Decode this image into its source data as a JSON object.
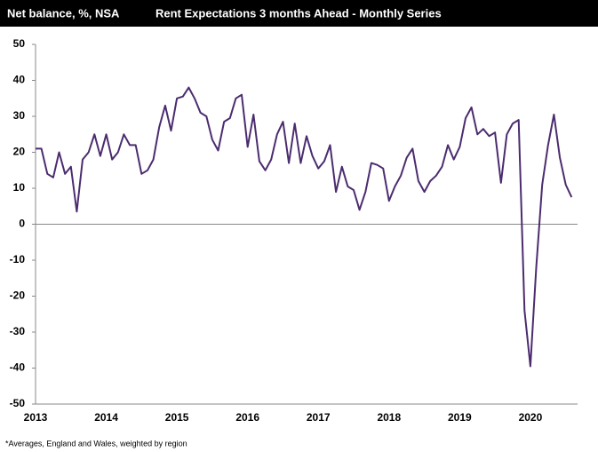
{
  "chart_data": {
    "type": "line",
    "title": "Rent Expectations 3 months Ahead -  Monthly Series",
    "y_label": "Net balance, %, NSA",
    "footnote": "*Averages,  England and Wales, weighted by region",
    "categories": [
      "2013",
      null,
      null,
      null,
      null,
      null,
      null,
      null,
      null,
      null,
      null,
      null,
      "2014",
      null,
      null,
      null,
      null,
      null,
      null,
      null,
      null,
      null,
      null,
      null,
      "2015",
      null,
      null,
      null,
      null,
      null,
      null,
      null,
      null,
      null,
      null,
      null,
      "2016",
      null,
      null,
      null,
      null,
      null,
      null,
      null,
      null,
      null,
      null,
      null,
      "2017",
      null,
      null,
      null,
      null,
      null,
      null,
      null,
      null,
      null,
      null,
      null,
      "2018",
      null,
      null,
      null,
      null,
      null,
      null,
      null,
      null,
      null,
      null,
      null,
      "2019",
      null,
      null,
      null,
      null,
      null,
      null,
      null,
      null,
      null,
      null,
      null,
      "2020",
      null,
      null,
      null,
      null,
      null,
      null,
      null
    ],
    "series": [
      {
        "name": "Rent expectations",
        "color": "#4b2c6f",
        "values": [
          21,
          21,
          14,
          13,
          20,
          14,
          16,
          3.5,
          18,
          20,
          25,
          19,
          25,
          18,
          20,
          25,
          22,
          22,
          14,
          15,
          18,
          27,
          33,
          26,
          35,
          35.5,
          38,
          35,
          31,
          30,
          23.5,
          20.5,
          28.5,
          29.5,
          35,
          36,
          21.5,
          30.5,
          17.5,
          15,
          18,
          25,
          28.5,
          17,
          28,
          17,
          24.5,
          19,
          15.5,
          17.5,
          22,
          9,
          16,
          10.5,
          9.5,
          4,
          9,
          17,
          16.5,
          15.5,
          6.5,
          10.5,
          13.5,
          18.5,
          21,
          12,
          9,
          12,
          13.5,
          16,
          22,
          18,
          21.5,
          29.5,
          32.5,
          25,
          26.5,
          24.5,
          25.5,
          11.5,
          25,
          28,
          29,
          -24,
          -39.5,
          -12,
          11,
          22,
          30.5,
          18.5,
          11,
          7.5
        ]
      }
    ],
    "ylim": [
      -50,
      50
    ],
    "yticks": [
      -50,
      -40,
      -30,
      -20,
      -10,
      0,
      10,
      20,
      30,
      40,
      50
    ]
  }
}
